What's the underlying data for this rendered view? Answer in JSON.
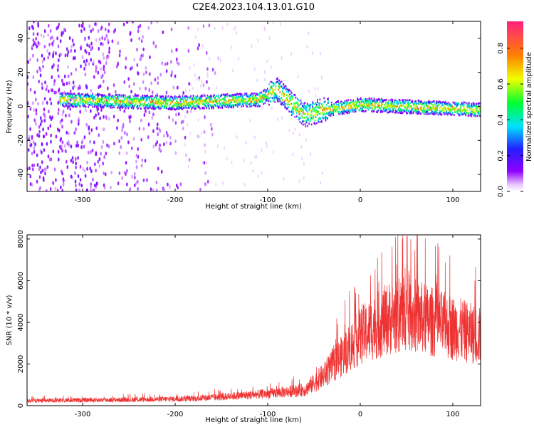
{
  "chart_data": [
    {
      "type": "heatmap",
      "title": "C2E4.2023.104.13.01.G10",
      "xlabel": "Height of straight line (km)",
      "ylabel": "Frequency (Hz)",
      "xlim": [
        -360,
        130
      ],
      "ylim": [
        -50,
        50
      ],
      "xticks": [
        -300,
        -200,
        -100,
        0,
        100
      ],
      "yticks": [
        -40,
        -20,
        0,
        20,
        40
      ],
      "colorbar": {
        "label": "Normalized spectral amplitude",
        "range": [
          0.0,
          0.95
        ],
        "ticks": [
          0.0,
          0.2,
          0.4,
          0.6,
          0.8
        ],
        "tick_labels": [
          "0.0",
          "0.2",
          "0.4",
          "0.6",
          "0.8"
        ]
      },
      "band": {
        "description_points": [
          {
            "x": -325,
            "freq": 4
          },
          {
            "x": -200,
            "freq": 2
          },
          {
            "x": -110,
            "freq": 4
          },
          {
            "x": -90,
            "freq": 10
          },
          {
            "x": -75,
            "freq": 2
          },
          {
            "x": -60,
            "freq": -5
          },
          {
            "x": -40,
            "freq": -2
          },
          {
            "x": 0,
            "freq": 1
          },
          {
            "x": 130,
            "freq": -2
          }
        ],
        "peak_amplitude": 0.9,
        "noise_floor_region_x": [
          -360,
          -190
        ]
      },
      "grid": false
    },
    {
      "type": "line",
      "xlabel": "Height of straight line (km)",
      "ylabel": "SNR (10 * v/v)",
      "xlim": [
        -360,
        130
      ],
      "ylim": [
        0,
        8200
      ],
      "xticks": [
        -300,
        -200,
        -100,
        0,
        100
      ],
      "yticks": [
        0,
        2000,
        4000,
        6000,
        8000
      ],
      "color": "#ee3333",
      "envelope": [
        {
          "x": -360,
          "y": 250
        },
        {
          "x": -250,
          "y": 300
        },
        {
          "x": -180,
          "y": 350
        },
        {
          "x": -100,
          "y": 600
        },
        {
          "x": -60,
          "y": 800
        },
        {
          "x": -40,
          "y": 1500
        },
        {
          "x": -20,
          "y": 2500
        },
        {
          "x": 0,
          "y": 3500
        },
        {
          "x": 30,
          "y": 4400
        },
        {
          "x": 50,
          "y": 4700
        },
        {
          "x": 80,
          "y": 4200
        },
        {
          "x": 110,
          "y": 3800
        },
        {
          "x": 130,
          "y": 3500
        }
      ],
      "max_y": 8200,
      "grid": false
    }
  ]
}
